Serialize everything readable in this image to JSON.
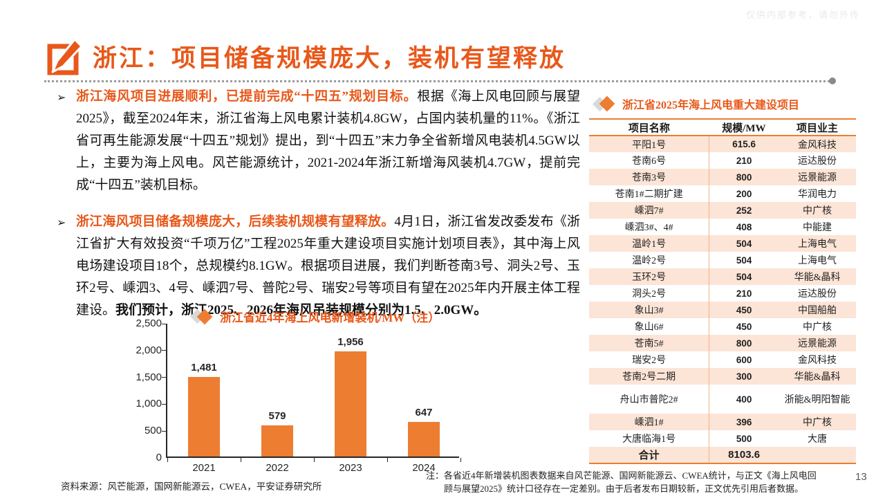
{
  "colors": {
    "accent": "#ED7D31",
    "accent_text": "#E8581A",
    "bar": "#ED7D31",
    "row_shade": "#FCE4D6",
    "diamond_gray": "#D9D9D9"
  },
  "watermark": "仅供内部参考，请勿外传",
  "page_number": "13",
  "header": {
    "title": "浙江：项目储备规模庞大，装机有望释放",
    "icon": "pencil-edit-icon"
  },
  "bullets": [
    {
      "lead": "浙江海风项目进展顺利，已提前完成“十四五”规划目标。",
      "body": "根据《海上风电回顾与展望2025》，截至2024年末，浙江省海上风电累计装机4.8GW，占国内装机量的11%。《浙江省可再生能源发展“十四五”规划》提出，到“十四五”末力争全省新增风电装机4.5GW以上，主要为海上风电。风芒能源统计，2021-2024年浙江新增海风装机4.7GW，提前完成“十四五”装机目标。",
      "bold_tail": ""
    },
    {
      "lead": "浙江海风项目储备规模庞大，后续装机规模有望释放。",
      "body": "4月1日，浙江省发改委发布《浙江省扩大有效投资“千项万亿”工程2025年重大建设项目实施计划项目表》，其中海上风电场建设项目18个，总规模约8.1GW。根据项目进展，我们判断苍南3号、洞头2号、玉环2号、嵊泗3、4号、嵊泗7号、普陀2号、瑞安2号等项目有望在2025年内开展主体工程建设。",
      "bold_tail": "我们预计，浙江2025、2026年海风吊装规模分别为1.5、2.0GW。"
    }
  ],
  "chart_data": {
    "type": "bar",
    "title": "浙江省近4年海上风电新增装机/MW（注）",
    "categories": [
      "2021",
      "2022",
      "2023",
      "2024"
    ],
    "values": [
      1481,
      579,
      1956,
      647
    ],
    "value_labels": [
      "1,481",
      "579",
      "1,956",
      "647"
    ],
    "ylim": [
      0,
      2500
    ],
    "yticks": [
      "0",
      "500",
      "1,000",
      "1,500",
      "2,000",
      "2,500"
    ],
    "xlabel": "",
    "ylabel": "",
    "grid": false,
    "legend": "none",
    "bar_color": "#ED7D31"
  },
  "table": {
    "title": "浙江省2025年海上风电重大建设项目",
    "headers": [
      "项目名称",
      "规模/MW",
      "项目业主"
    ],
    "rows": [
      [
        "平阳1号",
        "615.6",
        "金风科技"
      ],
      [
        "苍南6号",
        "210",
        "运达股份"
      ],
      [
        "苍南3号",
        "800",
        "远景能源"
      ],
      [
        "苍南1#二期扩建",
        "200",
        "华润电力"
      ],
      [
        "嵊泗7#",
        "252",
        "中广核"
      ],
      [
        "嵊泗3#、4#",
        "408",
        "中能建"
      ],
      [
        "温岭1号",
        "504",
        "上海电气"
      ],
      [
        "温岭2号",
        "504",
        "上海电气"
      ],
      [
        "玉环2号",
        "504",
        "华能&晶科"
      ],
      [
        "洞头2号",
        "210",
        "运达股份"
      ],
      [
        "象山3#",
        "450",
        "中国船舶"
      ],
      [
        "象山6#",
        "450",
        "中广核"
      ],
      [
        "苍南5#",
        "800",
        "远景能源"
      ],
      [
        "瑞安2号",
        "600",
        "金风科技"
      ],
      [
        "苍南2号二期",
        "300",
        "华能&晶科"
      ],
      [
        "舟山市普陀2#",
        "400",
        "浙能&明阳智能"
      ],
      [
        "嵊泗1#",
        "396",
        "中广核"
      ],
      [
        "大唐临海1号",
        "500",
        "大唐"
      ]
    ],
    "total_row": [
      "合计",
      "8103.6",
      ""
    ]
  },
  "footer": {
    "source": "资料来源：风芒能源，国网新能源云，CWEA，平安证券研究所",
    "note_lines": [
      "注：各省近4年新增装机图表数据来自风芒能源、国网新能源云、CWEA统计，与正文《海上风电回",
      "顾与展望2025》统计口径存在一定差别。由于后者发布日期较新，正文优先引用后者数据。"
    ]
  }
}
